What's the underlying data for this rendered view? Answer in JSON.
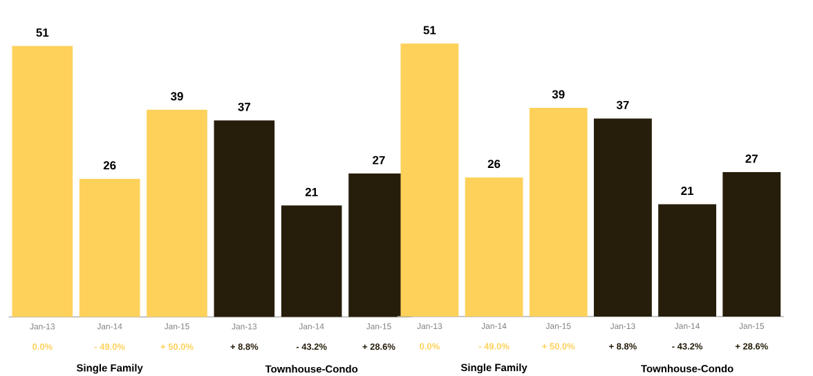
{
  "chart_data": [
    {
      "type": "bar",
      "categories": [
        "Jan-13",
        "Jan-14",
        "Jan-15",
        "Jan-13",
        "Jan-14",
        "Jan-15"
      ],
      "values": [
        51,
        26,
        39,
        37,
        21,
        27
      ],
      "colors": [
        "#fed15b",
        "#fed15b",
        "#fed15b",
        "#261d0b",
        "#261d0b",
        "#261d0b"
      ],
      "data_labels": true,
      "annotations": [
        "0.0%",
        "- 49.0%",
        "+ 50.0%",
        "+ 8.8%",
        "- 43.2%",
        "+ 28.6%",
        "Single Family",
        "Townhouse-Condo"
      ]
    },
    {
      "type": "bar",
      "categories": [
        "Jan-13",
        "Jan-14",
        "Jan-15",
        "Jan-13",
        "Jan-14",
        "Jan-15"
      ],
      "values": [
        51,
        26,
        39,
        37,
        21,
        27
      ],
      "colors": [
        "#fed15b",
        "#fed15b",
        "#fed15b",
        "#261d0b",
        "#261d0b",
        "#261d0b"
      ],
      "data_labels": true,
      "annotations": [
        "0.0%",
        "- 49.0%",
        "+ 50.0%",
        "+ 8.8%",
        "- 43.2%",
        "+ 28.6%",
        "Single Family",
        "Townhouse-Condo"
      ]
    }
  ]
}
